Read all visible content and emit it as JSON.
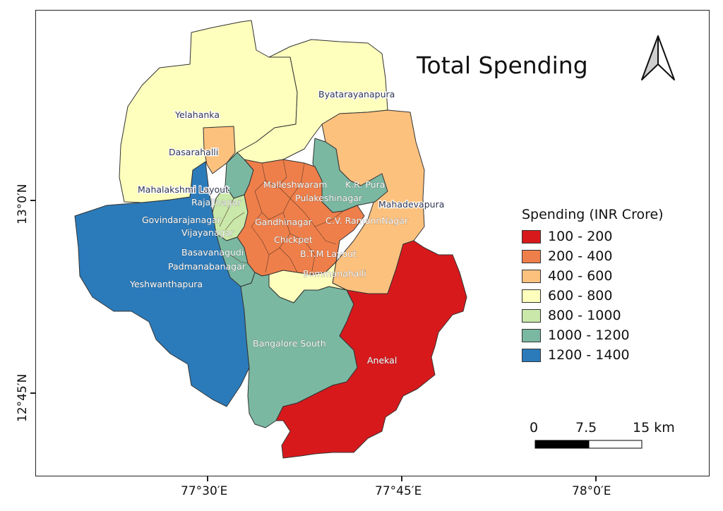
{
  "title": "Total Spending",
  "legend": {
    "title": "Spending (INR Crore)",
    "items": [
      {
        "label": "100 - 200",
        "color": "#d7191c"
      },
      {
        "label": "200 - 400",
        "color": "#ef7f4a"
      },
      {
        "label": "400 - 600",
        "color": "#fdc17e"
      },
      {
        "label": "600 - 800",
        "color": "#fefebd"
      },
      {
        "label": "800 - 1000",
        "color": "#c9e8a9"
      },
      {
        "label": "1000 - 1200",
        "color": "#7ab8a2"
      },
      {
        "label": "1200 - 1400",
        "color": "#2b7bba"
      }
    ]
  },
  "axes": {
    "x_ticks": [
      "77°30′E",
      "77°45′E",
      "78°0′E"
    ],
    "y_ticks": [
      "13°0′N",
      "12°45′N"
    ]
  },
  "scale_bar": {
    "labels": [
      "0",
      "7.5",
      "15 km"
    ]
  },
  "north_arrow": {
    "icon": "north-arrow-icon"
  },
  "regions": [
    {
      "name": "Yelahanka",
      "range": "600 - 800"
    },
    {
      "name": "Byatarayanapura",
      "range": "600 - 800"
    },
    {
      "name": "Dasarahalli",
      "range": "400 - 600"
    },
    {
      "name": "Mahalakshmi Layout",
      "range": "1200 - 1400"
    },
    {
      "name": "Rajajinagar",
      "range": "800 - 1000"
    },
    {
      "name": "Malleshwaram",
      "range": "200 - 400"
    },
    {
      "name": "K.R. Pura",
      "range": "1000 - 1200"
    },
    {
      "name": "Pulakeshinagar",
      "range": "200 - 400"
    },
    {
      "name": "Mahadevapura",
      "range": "400 - 600"
    },
    {
      "name": "Govindarajanagar",
      "range": "800 - 1000"
    },
    {
      "name": "Gandhinagar",
      "range": "200 - 400"
    },
    {
      "name": "C.V. RamannNagar",
      "range": "200 - 400"
    },
    {
      "name": "Vijayanagar",
      "range": "800 - 1000"
    },
    {
      "name": "Chickpet",
      "range": "200 - 400"
    },
    {
      "name": "Basavanagudi",
      "range": "200 - 400"
    },
    {
      "name": "B.T.M Layout",
      "range": "200 - 400"
    },
    {
      "name": "Padmanabanagar",
      "range": "1000 - 1200"
    },
    {
      "name": "Bommanahalli",
      "range": "600 - 800"
    },
    {
      "name": "Yeshwanthapura",
      "range": "1200 - 1400"
    },
    {
      "name": "Bangalore South",
      "range": "1000 - 1200"
    },
    {
      "name": "Anekal",
      "range": "100 - 200"
    }
  ]
}
